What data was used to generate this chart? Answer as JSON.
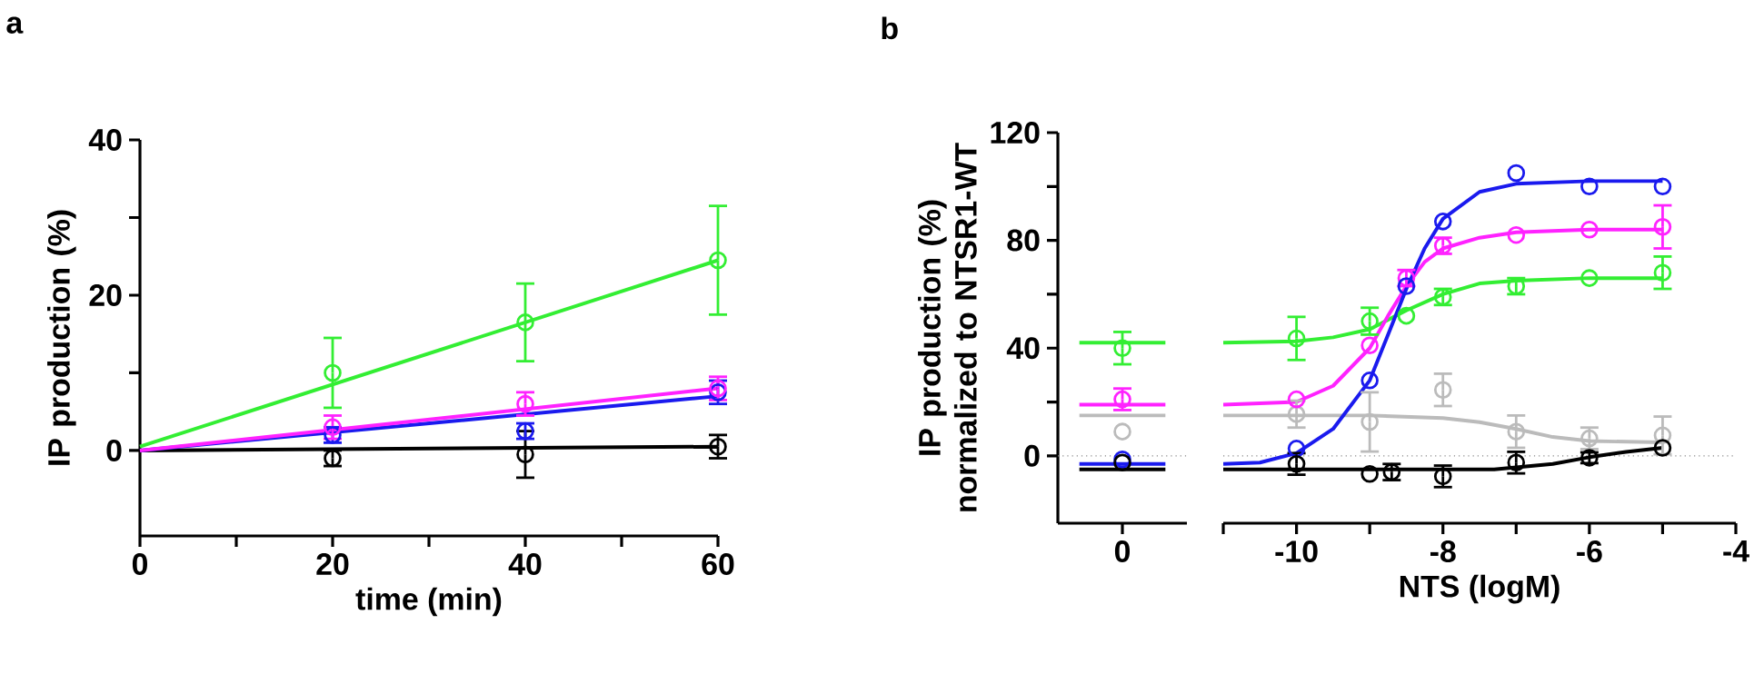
{
  "chart_data": [
    {
      "type": "scatter",
      "title": "a",
      "xlabel": "time (min)",
      "ylabel": "IP production (%)",
      "marker": "circle",
      "xlim": [
        0,
        60
      ],
      "ylim": [
        -11,
        40
      ],
      "xticks": [
        0,
        {
          "value": 10,
          "label": null
        },
        20,
        {
          "value": 30,
          "label": null
        },
        40,
        {
          "value": 50,
          "label": null
        },
        60
      ],
      "yticks": [
        0,
        {
          "value": 10,
          "label": null
        },
        20,
        {
          "value": 30,
          "label": null
        },
        40
      ],
      "series": [
        {
          "type": "line",
          "marker": "none",
          "color": "#000000",
          "x": [
            0,
            60
          ],
          "values": [
            0,
            0.5
          ]
        },
        {
          "type": "line",
          "marker": "none",
          "color": "#1a1aee",
          "x": [
            0,
            60
          ],
          "values": [
            0,
            7
          ]
        },
        {
          "type": "line",
          "marker": "none",
          "color": "#ff22ff",
          "x": [
            0,
            60
          ],
          "values": [
            0,
            8
          ]
        },
        {
          "type": "line",
          "marker": "none",
          "color": "#33ee33",
          "x": [
            0,
            60
          ],
          "values": [
            0.5,
            24.5
          ]
        },
        {
          "color": "#000000",
          "x": [
            20,
            40,
            60
          ],
          "values": [
            -1,
            -0.5,
            0.5
          ],
          "errors": [
            1,
            3,
            1.5
          ]
        },
        {
          "color": "#1a1aee",
          "x": [
            20,
            40,
            60
          ],
          "values": [
            2,
            2.5,
            7.5
          ],
          "errors": [
            1,
            1,
            1.5
          ]
        },
        {
          "color": "#ff22ff",
          "x": [
            20,
            40,
            60
          ],
          "values": [
            3,
            6,
            8
          ],
          "errors": [
            1.5,
            1.5,
            1.5
          ]
        },
        {
          "color": "#33ee33",
          "x": [
            20,
            40,
            60
          ],
          "values": [
            10,
            16.5,
            24.5
          ],
          "errors": [
            4.5,
            5,
            7
          ]
        }
      ]
    },
    {
      "type": "scatter",
      "title": "b",
      "ylabel": "IP production (%) normalized to NTSR1-WT",
      "marker": "circle",
      "categories": [
        null,
        "0",
        null
      ],
      "ylim": [
        -25,
        120
      ],
      "yticks": [
        0,
        {
          "value": 20,
          "label": null
        },
        40,
        {
          "value": 60,
          "label": null
        },
        80,
        {
          "value": 100,
          "label": null
        },
        120
      ],
      "ref_lines": [
        {
          "axis": "y",
          "value": 0,
          "color": "#888888",
          "line_style": "dotted"
        }
      ],
      "series": [
        {
          "type": "line",
          "marker": "none",
          "color": "#bbbbbb",
          "values": [
            15,
            15,
            15
          ]
        },
        {
          "type": "line",
          "marker": "none",
          "color": "#33ee33",
          "values": [
            42,
            42,
            42
          ]
        },
        {
          "type": "line",
          "marker": "none",
          "color": "#ff22ff",
          "values": [
            19,
            19,
            19
          ]
        },
        {
          "type": "line",
          "marker": "none",
          "color": "#1a1aee",
          "values": [
            -3,
            -3,
            -3
          ]
        },
        {
          "type": "line",
          "marker": "none",
          "color": "#000000",
          "values": [
            -5,
            -5,
            -5
          ]
        },
        {
          "color": "#bbbbbb",
          "values": [
            null,
            9,
            null
          ],
          "errors": [
            null,
            null,
            null
          ]
        },
        {
          "color": "#33ee33",
          "values": [
            null,
            40,
            null
          ],
          "errors": [
            null,
            6,
            null
          ]
        },
        {
          "color": "#ff22ff",
          "values": [
            null,
            21,
            null
          ],
          "errors": [
            null,
            4,
            null
          ]
        },
        {
          "color": "#1a1aee",
          "values": [
            null,
            -1.3,
            null
          ],
          "errors": [
            null,
            null,
            null
          ]
        },
        {
          "color": "#000000",
          "values": [
            null,
            -2.5,
            null
          ],
          "errors": [
            null,
            null,
            null
          ]
        }
      ]
    },
    {
      "type": "scatter",
      "xlabel": "NTS (logM)",
      "marker": "circle",
      "tick_labels": "x",
      "xlim": [
        -11,
        -4
      ],
      "ylim": [
        -25,
        120
      ],
      "xticks": [
        {
          "value": -11,
          "label": null
        },
        -10,
        {
          "value": -9,
          "label": null
        },
        -8,
        {
          "value": -7,
          "label": null
        },
        -6,
        {
          "value": -5,
          "label": null
        },
        -4
      ],
      "ref_lines": [
        {
          "axis": "y",
          "value": 0,
          "color": "#888888",
          "line_style": "dotted"
        }
      ],
      "series": [
        {
          "type": "line",
          "marker": "none",
          "color": "#bbbbbb",
          "x": [
            -11,
            -9,
            -8,
            -7.5,
            -7,
            -6.5,
            -6,
            -5
          ],
          "values": [
            15,
            15,
            14,
            12.5,
            10,
            7,
            5.5,
            5
          ]
        },
        {
          "type": "line",
          "marker": "none",
          "color": "#33ee33",
          "x": [
            -11,
            -10,
            -9.5,
            -9,
            -8.5,
            -8,
            -7.5,
            -7,
            -6,
            -5
          ],
          "values": [
            42,
            42.5,
            44,
            47,
            54,
            60,
            64,
            65,
            66,
            66
          ]
        },
        {
          "type": "line",
          "marker": "none",
          "color": "#ff22ff",
          "x": [
            -11,
            -10,
            -9.5,
            -9,
            -8.75,
            -8.5,
            -8.25,
            -8,
            -7.5,
            -7,
            -6,
            -5
          ],
          "values": [
            19,
            20,
            26,
            40,
            52,
            63,
            72,
            77,
            81,
            83,
            84,
            84
          ]
        },
        {
          "type": "line",
          "marker": "none",
          "color": "#1a1aee",
          "x": [
            -11,
            -10.5,
            -10,
            -9.5,
            -9,
            -8.75,
            -8.5,
            -8.25,
            -8,
            -7.5,
            -7,
            -6,
            -5
          ],
          "values": [
            -3,
            -2.5,
            1,
            10,
            28,
            45,
            62,
            77,
            88,
            98,
            101,
            102,
            102
          ]
        },
        {
          "type": "line",
          "marker": "none",
          "color": "#000000",
          "x": [
            -11,
            -7.3,
            -6.5,
            -6,
            -5.5,
            -5
          ],
          "values": [
            -5,
            -5,
            -3,
            -0.5,
            1.5,
            3
          ]
        },
        {
          "color": "#bbbbbb",
          "x": [
            -10,
            -9,
            -8,
            -7,
            -6,
            -5
          ],
          "values": [
            15.5,
            12.6,
            24.5,
            9,
            6.5,
            7.6
          ],
          "errors": [
            5,
            11,
            6,
            6,
            4,
            7
          ]
        },
        {
          "color": "#33ee33",
          "x": [
            -10,
            -9,
            -8.5,
            -8,
            -7,
            -6,
            -5
          ],
          "values": [
            43.6,
            50,
            52,
            59,
            63,
            66,
            68
          ],
          "errors": [
            8,
            5,
            null,
            3,
            3,
            null,
            6
          ]
        },
        {
          "color": "#ff22ff",
          "x": [
            -10,
            -9,
            -8.5,
            -8,
            -7,
            -6,
            -5
          ],
          "values": [
            21,
            41,
            66,
            78,
            82,
            84,
            85
          ],
          "errors": [
            null,
            null,
            3,
            3,
            null,
            null,
            8
          ]
        },
        {
          "color": "#1a1aee",
          "x": [
            -10,
            -9,
            -8.5,
            -8,
            -7,
            -6,
            -5
          ],
          "values": [
            2.7,
            28,
            63,
            87,
            105,
            100,
            100
          ],
          "errors": [
            null,
            null,
            null,
            null,
            null,
            null,
            null
          ]
        },
        {
          "color": "#000000",
          "x": [
            -10,
            -9,
            -8.7,
            -8,
            -7,
            -6,
            -5
          ],
          "values": [
            -3,
            -6.7,
            -6,
            -7.6,
            -2.5,
            -0.7,
            3
          ],
          "errors": [
            4,
            null,
            3,
            4,
            4,
            2,
            null
          ]
        }
      ]
    }
  ]
}
